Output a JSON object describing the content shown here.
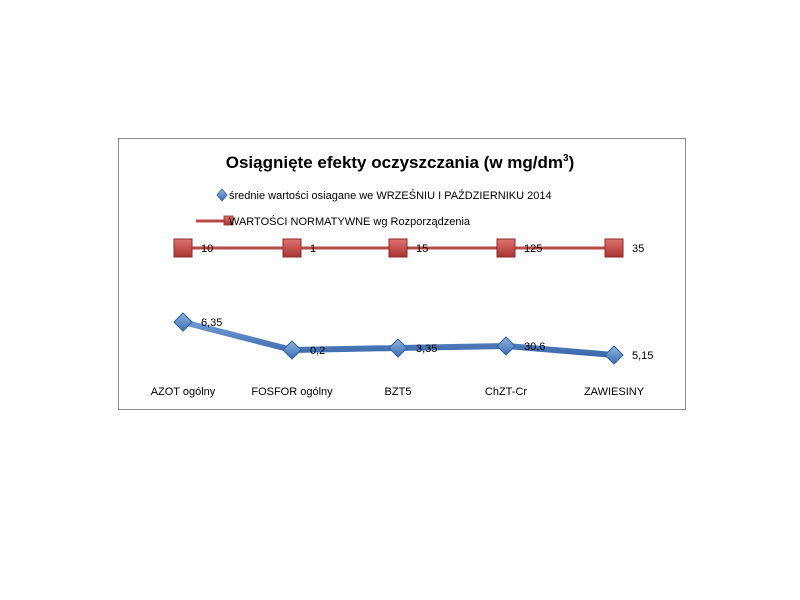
{
  "chart_data": {
    "type": "line",
    "title": "Osiągnięte efekty oczyszczania (w mg/dm",
    "title_superscript": "3",
    "title_suffix": ")",
    "categories": [
      "AZOT ogólny",
      "FOSFOR ogólny",
      "BZT5",
      "ChZT-Cr",
      "ZAWIESINY"
    ],
    "series": [
      {
        "name": "średnie wartości osiagane we WRZEŚNIU I PAŹDZIERNIKU 2014",
        "values": [
          6.35,
          0.2,
          3.35,
          30.6,
          5.15
        ],
        "labels": [
          "6,35",
          "0,2",
          "3,35",
          "30,6",
          "5,15"
        ],
        "color": "#4f81bd",
        "marker": "diamond"
      },
      {
        "name": "WARTOŚCI NORMATYWNE wg Rozporządzenia",
        "values": [
          10,
          1,
          15,
          125,
          35
        ],
        "labels": [
          "10",
          "1",
          "15",
          "125",
          "35"
        ],
        "color": "#c0504d",
        "marker": "square"
      }
    ],
    "legend_position": "top",
    "grid": false
  }
}
